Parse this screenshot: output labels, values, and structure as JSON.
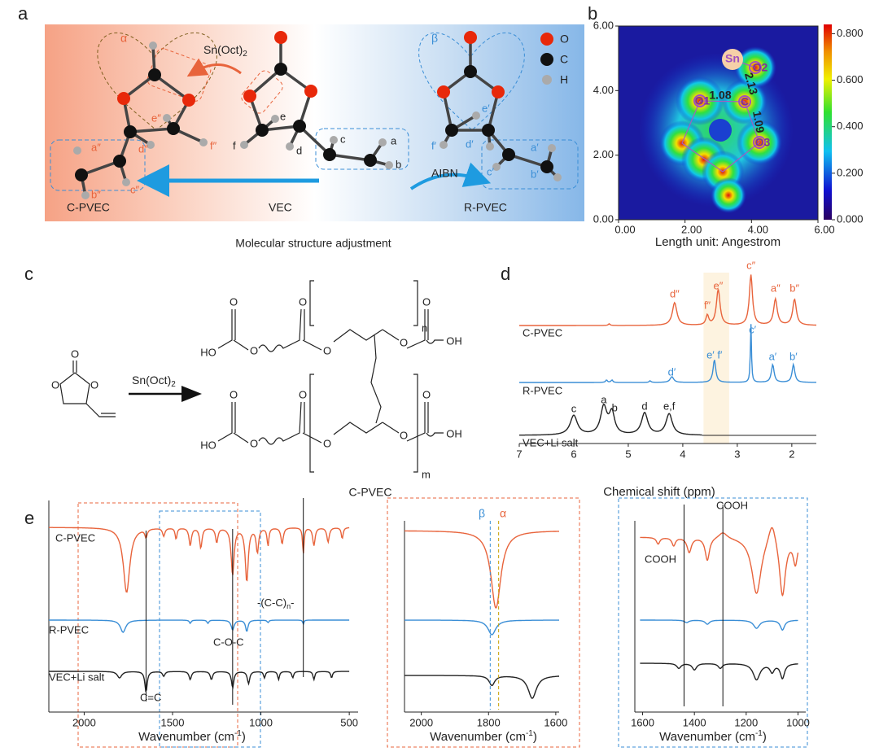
{
  "panel_a": {
    "label": "a",
    "caption": "Molecular structure adjustment",
    "legend": [
      "O",
      "C",
      "H"
    ],
    "alpha": "α",
    "beta": "β",
    "catalyst": {
      "text": "Sn(Oct)",
      "sub": "2"
    },
    "initiator": "AIBN",
    "names": [
      "C-PVEC",
      "VEC",
      "R-PVEC"
    ],
    "vec_atoms": [
      "a",
      "b",
      "c",
      "d",
      "e",
      "f"
    ],
    "cpvec_atoms": [
      "a″",
      "b″",
      "c″",
      "d″",
      "e″",
      "f″"
    ],
    "rpvec_atoms": [
      "a′",
      "b′",
      "c′",
      "d′",
      "e′",
      "f′"
    ]
  },
  "panel_b": {
    "label": "b",
    "xlabel": "Length unit: Angestrom",
    "xlim": [
      0,
      6
    ],
    "ylim": [
      0,
      6
    ],
    "xticks": [
      {
        "value": 0,
        "label": "0.00"
      },
      {
        "value": 2,
        "label": "2.00"
      },
      {
        "value": 4,
        "label": "4.00"
      },
      {
        "value": 6,
        "label": "6.00"
      }
    ],
    "yticks": [
      {
        "value": 0,
        "label": "0.00"
      },
      {
        "value": 2,
        "label": "2.00"
      },
      {
        "value": 4,
        "label": "4.00"
      },
      {
        "value": 6,
        "label": "6.00"
      }
    ],
    "clim": [
      0,
      0.84
    ],
    "colorbar_ticks": [
      {
        "value": 0,
        "label": "0.000"
      },
      {
        "value": 0.2,
        "label": "0.200"
      },
      {
        "value": 0.4,
        "label": "0.400"
      },
      {
        "value": 0.6,
        "label": "0.600"
      },
      {
        "value": 0.8,
        "label": "0.800"
      }
    ],
    "atoms": [
      "Sn",
      "O2",
      "C",
      "O1",
      "O3"
    ],
    "distances": [
      "1.08",
      "2.13",
      "1.09"
    ]
  },
  "panel_c": {
    "label": "c",
    "catalyst": {
      "text": "Sn(Oct)",
      "sub": "2"
    },
    "product": "C-PVEC",
    "monomer_atoms": [
      "O",
      "O",
      "O"
    ],
    "top_chain": [
      "O",
      "HO",
      "O",
      "O",
      "O",
      "O",
      "O",
      "OH"
    ],
    "bottom_chain": [
      "O",
      "HO",
      "O",
      "O",
      "O",
      "O",
      "O",
      "OH"
    ],
    "repeat": [
      "n",
      "m"
    ]
  },
  "panel_d": {
    "label": "d",
    "xlabel": "Chemical shift (ppm)",
    "xlim": [
      7,
      1.55
    ],
    "xticks": [
      7,
      6,
      5,
      4,
      3,
      2
    ],
    "traces": [
      "C-PVEC",
      "R-PVEC",
      "VEC+Li salt"
    ],
    "cpvec_peaks": [
      "d″",
      "f″",
      "e″",
      "c″",
      "a″",
      "b″"
    ],
    "rpvec_peaks": [
      "d′",
      "e′ f′",
      "c′",
      "a′",
      "b′"
    ],
    "vec_peaks": [
      "c",
      "a",
      "b",
      "d",
      "e,f"
    ]
  },
  "panel_e": {
    "label": "e",
    "xlabel": {
      "text": "Wavenumber (cm",
      "sup": "-1",
      "end": ")"
    },
    "plot1": {
      "xlim": [
        2200,
        450
      ],
      "xticks": [
        2000,
        1500,
        1000,
        500
      ],
      "traces": [
        "C-PVEC",
        "R-PVEC",
        "VEC+Li salt"
      ],
      "annotations": [
        "C=C",
        "C-O-C"
      ],
      "chain": {
        "text": "-(C-C)",
        "sub": "n",
        "end": "-"
      }
    },
    "plot2": {
      "xlim": [
        2050,
        1590
      ],
      "xticks": [
        2000,
        1800,
        1600
      ],
      "annotations": [
        "β",
        "α"
      ]
    },
    "plot3": {
      "xlim": [
        1630,
        970
      ],
      "xticks": [
        1600,
        1400,
        1200,
        1000
      ],
      "annotations": [
        "COOH",
        "COOH"
      ]
    }
  }
}
